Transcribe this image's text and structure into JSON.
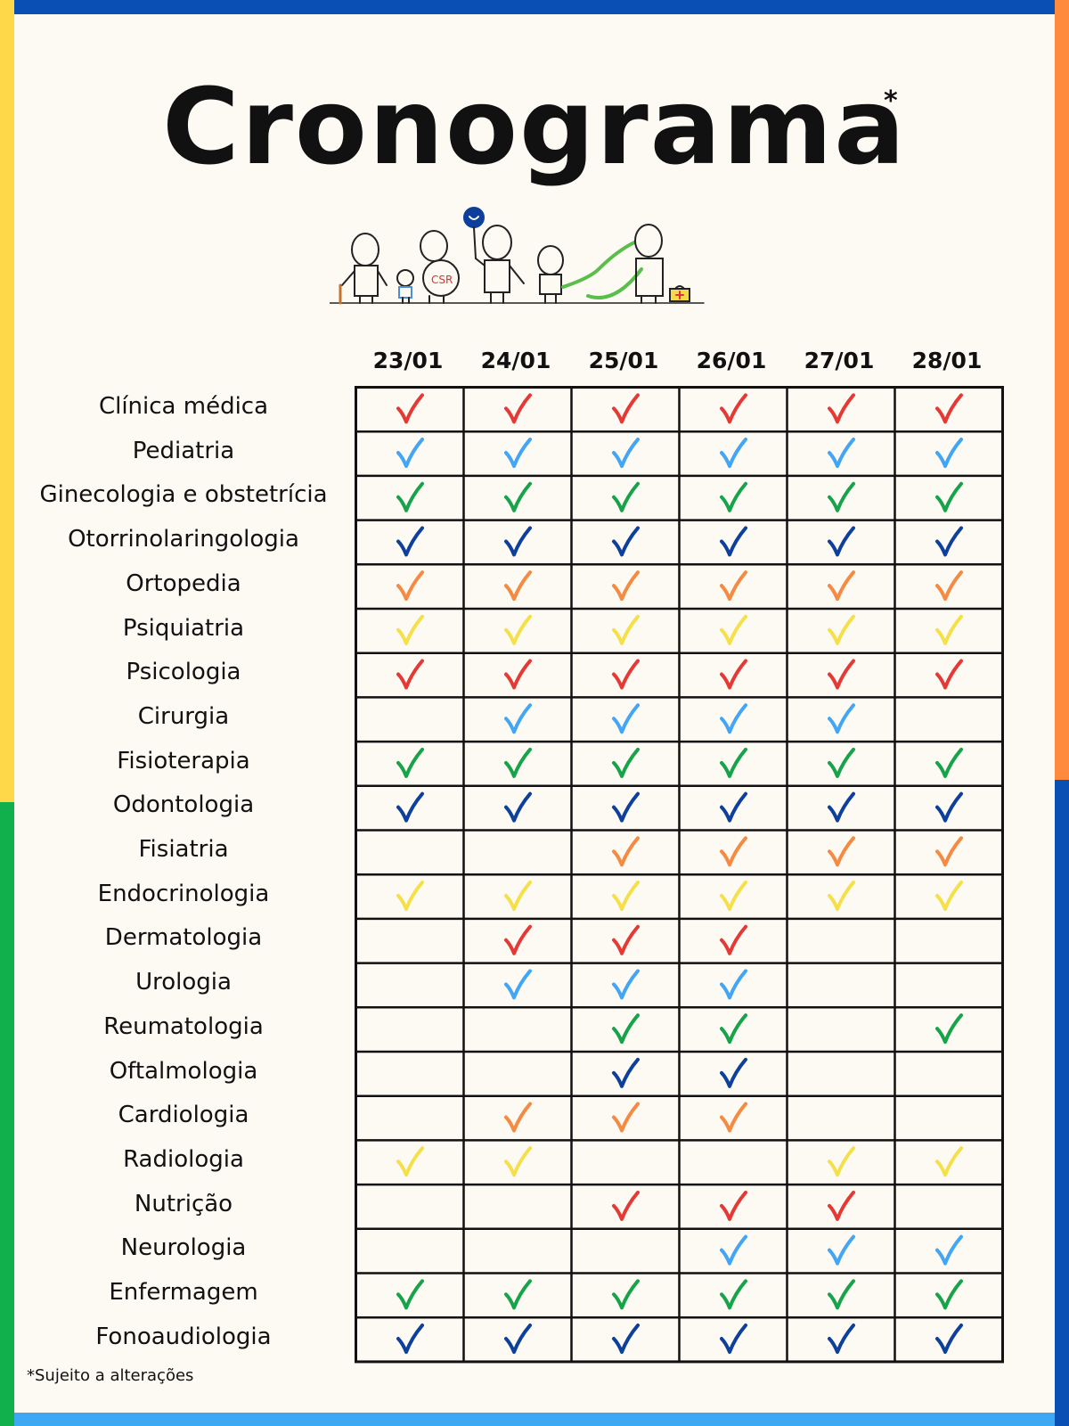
{
  "title": "Cronograma",
  "title_mark": "*",
  "illustration_icon": "doctors-family-cartoon-illustration",
  "colors": {
    "red": "#e53935",
    "lightblue": "#42a5f5",
    "green": "#16a34a",
    "navy": "#0d3f9c",
    "orange": "#f58a42",
    "yellow": "#f5e04a"
  },
  "dates": [
    "23/01",
    "24/01",
    "25/01",
    "26/01",
    "27/01",
    "28/01"
  ],
  "rows": [
    {
      "label": "Clínica médica",
      "color": "#e53935",
      "checks": [
        1,
        1,
        1,
        1,
        1,
        1
      ]
    },
    {
      "label": "Pediatria",
      "color": "#42a5f5",
      "checks": [
        1,
        1,
        1,
        1,
        1,
        1
      ]
    },
    {
      "label": "Ginecologia e obstetrícia",
      "color": "#16a34a",
      "checks": [
        1,
        1,
        1,
        1,
        1,
        1
      ]
    },
    {
      "label": "Otorrinolaringologia",
      "color": "#0d3f9c",
      "checks": [
        1,
        1,
        1,
        1,
        1,
        1
      ]
    },
    {
      "label": "Ortopedia",
      "color": "#f58a42",
      "checks": [
        1,
        1,
        1,
        1,
        1,
        1
      ]
    },
    {
      "label": "Psiquiatria",
      "color": "#f5e04a",
      "checks": [
        1,
        1,
        1,
        1,
        1,
        1
      ]
    },
    {
      "label": "Psicologia",
      "color": "#e53935",
      "checks": [
        1,
        1,
        1,
        1,
        1,
        1
      ]
    },
    {
      "label": "Cirurgia",
      "color": "#42a5f5",
      "checks": [
        0,
        1,
        1,
        1,
        1,
        0
      ]
    },
    {
      "label": "Fisioterapia",
      "color": "#16a34a",
      "checks": [
        1,
        1,
        1,
        1,
        1,
        1
      ]
    },
    {
      "label": "Odontologia",
      "color": "#0d3f9c",
      "checks": [
        1,
        1,
        1,
        1,
        1,
        1
      ]
    },
    {
      "label": "Fisiatria",
      "color": "#f58a42",
      "checks": [
        0,
        0,
        1,
        1,
        1,
        1
      ]
    },
    {
      "label": "Endocrinologia",
      "color": "#f5e04a",
      "checks": [
        1,
        1,
        1,
        1,
        1,
        1
      ]
    },
    {
      "label": "Dermatologia",
      "color": "#e53935",
      "checks": [
        0,
        1,
        1,
        1,
        0,
        0
      ]
    },
    {
      "label": "Urologia",
      "color": "#42a5f5",
      "checks": [
        0,
        1,
        1,
        1,
        0,
        0
      ]
    },
    {
      "label": "Reumatologia",
      "color": "#16a34a",
      "checks": [
        0,
        0,
        1,
        1,
        0,
        1
      ]
    },
    {
      "label": "Oftalmologia",
      "color": "#0d3f9c",
      "checks": [
        0,
        0,
        1,
        1,
        0,
        0
      ]
    },
    {
      "label": "Cardiologia",
      "color": "#f58a42",
      "checks": [
        0,
        1,
        1,
        1,
        0,
        0
      ]
    },
    {
      "label": "Radiologia",
      "color": "#f5e04a",
      "checks": [
        1,
        1,
        0,
        0,
        1,
        1
      ]
    },
    {
      "label": "Nutrição",
      "color": "#e53935",
      "checks": [
        0,
        0,
        1,
        1,
        1,
        0
      ]
    },
    {
      "label": "Neurologia",
      "color": "#42a5f5",
      "checks": [
        0,
        0,
        0,
        1,
        1,
        1
      ]
    },
    {
      "label": "Enfermagem",
      "color": "#16a34a",
      "checks": [
        1,
        1,
        1,
        1,
        1,
        1
      ]
    },
    {
      "label": "Fonoaudiologia",
      "color": "#0d3f9c",
      "checks": [
        1,
        1,
        1,
        1,
        1,
        1
      ]
    }
  ],
  "footnote": "*Sujeito a alterações",
  "check_icon": "checkmark-icon"
}
